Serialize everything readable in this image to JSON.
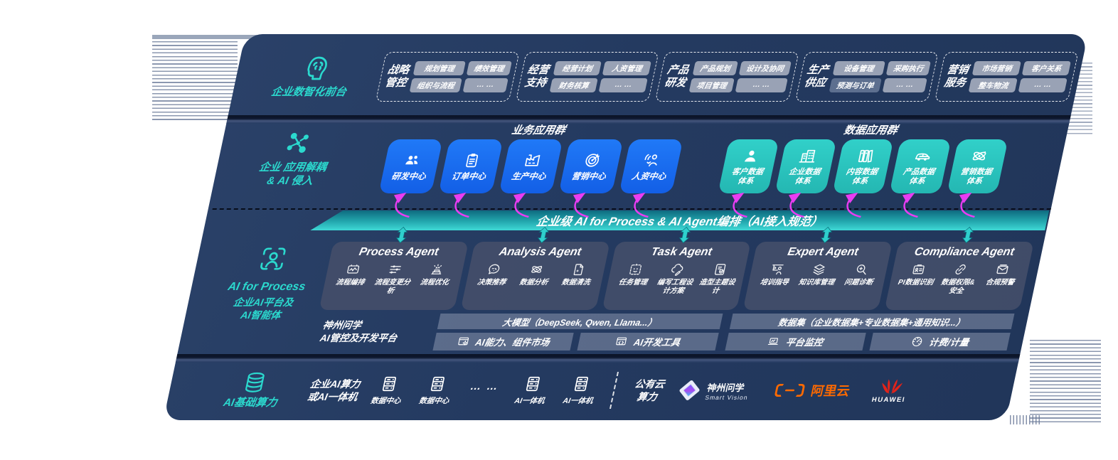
{
  "colors": {
    "panel_navy": "#243a60",
    "accent_teal": "#2bd9ce",
    "card_blue": "#1a6df4",
    "card_teal": "#2cc8c2",
    "magenta": "#e93df2",
    "aliyun_orange": "#ff6a00",
    "huawei_red": "#e2231a"
  },
  "front_office": {
    "label": "企业数智化前台",
    "icon": "brain-icon",
    "groups": [
      {
        "title_lines": [
          "战略",
          "管控"
        ],
        "chips": [
          "规划管理",
          "绩效管理",
          "组织与流程",
          "… …"
        ],
        "dark_chip": -1
      },
      {
        "title_lines": [
          "经营",
          "支持"
        ],
        "chips": [
          "经营计划",
          "人资管理",
          "财务核算",
          "… …"
        ],
        "dark_chip": -1
      },
      {
        "title_lines": [
          "产品",
          "研发"
        ],
        "chips": [
          "产品规划",
          "设计及协同",
          "项目管理",
          "… …"
        ],
        "dark_chip": -1
      },
      {
        "title_lines": [
          "生产",
          "供应"
        ],
        "chips": [
          "设备管理",
          "采购执行",
          "预测与订单",
          "… …"
        ],
        "dark_chip": 2
      },
      {
        "title_lines": [
          "营销",
          "服务"
        ],
        "chips": [
          "市场营销",
          "客户关系",
          "整车物流",
          "… …"
        ],
        "dark_chip": -1
      }
    ]
  },
  "app_layer": {
    "label": "企业 应用解耦\n& AI 侵入",
    "icon": "molecule-icon",
    "business_group": {
      "title": "业务应用群",
      "cards": [
        {
          "label": "研发中心",
          "icon": "team-icon"
        },
        {
          "label": "订单中心",
          "icon": "clipboard-icon"
        },
        {
          "label": "生产中心",
          "icon": "factory-icon"
        },
        {
          "label": "营销中心",
          "icon": "target-icon"
        },
        {
          "label": "人资中心",
          "icon": "hr-wave-icon"
        }
      ]
    },
    "data_group": {
      "title": "数据应用群",
      "cards": [
        {
          "label": "客户数据\n体系",
          "icon": "user-icon"
        },
        {
          "label": "企业数据\n体系",
          "icon": "building-icon"
        },
        {
          "label": "内容数据\n体系",
          "icon": "docs-icon"
        },
        {
          "label": "产品数据\n体系",
          "icon": "car-icon"
        },
        {
          "label": "营销数据\n体系",
          "icon": "atom-icon"
        }
      ]
    }
  },
  "ai_bus": {
    "label": "企业级 AI for Process & AI Agent编排（AI接入规范）"
  },
  "agent_layer": {
    "icon": "person-scan-icon",
    "label_title": "AI for Process",
    "label_sub": "企业AI平台及\nAI智能体",
    "agents": [
      {
        "title": "Process Agent",
        "items": [
          {
            "label": "流程编排",
            "icon": "flow-monitor-icon"
          },
          {
            "label": "流程变更分析",
            "icon": "sliders-icon"
          },
          {
            "label": "流程优化",
            "icon": "optimize-icon"
          }
        ]
      },
      {
        "title": "Analysis Agent",
        "items": [
          {
            "label": "决策推荐",
            "icon": "chat-bot-icon"
          },
          {
            "label": "数据分析",
            "icon": "atom-icon"
          },
          {
            "label": "数据清洗",
            "icon": "doc-sparkle-icon"
          }
        ]
      },
      {
        "title": "Task Agent",
        "items": [
          {
            "label": "任务管理",
            "icon": "robot-icon"
          },
          {
            "label": "编写工程设计方案",
            "icon": "cloud-edit-icon"
          },
          {
            "label": "造型主题设计",
            "icon": "doc-check-icon"
          }
        ]
      },
      {
        "title": "Expert Agent",
        "items": [
          {
            "label": "培训指导",
            "icon": "training-icon"
          },
          {
            "label": "知识库管理",
            "icon": "layers-icon"
          },
          {
            "label": "问题诊断",
            "icon": "magnifier-icon"
          }
        ]
      },
      {
        "title": "Compliance Agent",
        "items": [
          {
            "label": "PI数据识别",
            "icon": "id-card-icon"
          },
          {
            "label": "数据权限& 安全",
            "icon": "link-icon"
          },
          {
            "label": "合规预警",
            "icon": "mail-icon"
          }
        ]
      }
    ]
  },
  "platform": {
    "label": "神州问学\nAI管控及开发平台",
    "model_bar": "大模型（DeepSeek, Qwen, Llama...）",
    "model_cells": [
      {
        "label": "AI能力、组件市场",
        "icon": "window-gear-icon"
      },
      {
        "label": "AI开发工具",
        "icon": "dev-tools-icon"
      }
    ],
    "data_bar": "数据集（企业数据集+专业数据集+通用知识...）",
    "data_cells": [
      {
        "label": "平台监控",
        "icon": "monitor-icon"
      },
      {
        "label": "计费/计量",
        "icon": "gauge-icon"
      }
    ]
  },
  "infra": {
    "label": "AI基础算力",
    "icon": "database-icon",
    "compute_label": "企业AI算力\n或AI一体机",
    "servers": [
      {
        "label": "数据中心",
        "icon": "server-icon"
      },
      {
        "label": "数据中心",
        "icon": "server-icon"
      },
      {
        "label": "AI一体机",
        "icon": "server-icon"
      },
      {
        "label": "AI一体机",
        "icon": "server-icon"
      }
    ],
    "dots": "… …",
    "public_cloud": "公有云\n算力",
    "partners": [
      {
        "name": "神州问学",
        "subtitle": "Smart Vision",
        "logo": "smartvision-logo"
      },
      {
        "name": "阿里云",
        "logo": "aliyun-logo"
      },
      {
        "name": "HUAWEI",
        "logo": "huawei-logo"
      }
    ]
  }
}
